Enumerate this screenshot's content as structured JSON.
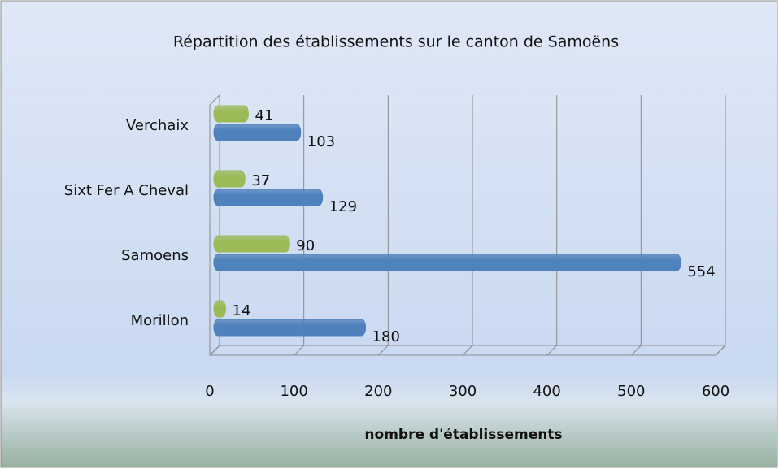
{
  "chart_data": {
    "type": "bar",
    "orientation": "horizontal",
    "title": "Répartition des établissements sur le canton de Samoëns",
    "xlabel": "nombre d'établissements",
    "categories": [
      "Morillon",
      "Samoens",
      "Sixt Fer A Cheval",
      "Verchaix"
    ],
    "series": [
      {
        "color": "#4f81bd",
        "values": [
          180,
          554,
          129,
          103
        ]
      },
      {
        "color": "#9bbb59",
        "values": [
          14,
          90,
          37,
          41
        ]
      }
    ],
    "xlim": [
      0,
      600
    ],
    "xticks": [
      0,
      100,
      200,
      300,
      400,
      500,
      600
    ],
    "grid": true
  }
}
